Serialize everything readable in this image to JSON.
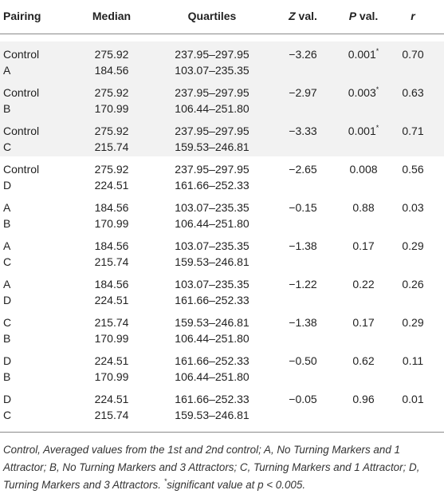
{
  "table": {
    "header": [
      "Pairing",
      "Median",
      "Quartiles",
      "Z val.",
      "P val.",
      "r"
    ],
    "rows": [
      {
        "pairing": [
          "Control",
          "A"
        ],
        "median": [
          "275.92",
          "184.56"
        ],
        "quartiles": [
          "237.95–297.95",
          "103.07–235.35"
        ],
        "z": "−3.26",
        "p": "0.001",
        "mark": "*",
        "r": "0.70"
      },
      {
        "pairing": [
          "Control",
          "B"
        ],
        "median": [
          "275.92",
          "170.99"
        ],
        "quartiles": [
          "237.95–297.95",
          "106.44–251.80"
        ],
        "z": "−2.97",
        "p": "0.003",
        "mark": "*",
        "r": "0.63"
      },
      {
        "pairing": [
          "Control",
          "C"
        ],
        "median": [
          "275.92",
          "215.74"
        ],
        "quartiles": [
          "237.95–297.95",
          "159.53–246.81"
        ],
        "z": "−3.33",
        "p": "0.001",
        "mark": "*",
        "r": "0.71"
      },
      {
        "pairing": [
          "Control",
          "D"
        ],
        "median": [
          "275.92",
          "224.51"
        ],
        "quartiles": [
          "237.95–297.95",
          "161.66–252.33"
        ],
        "z": "−2.65",
        "p": "0.008",
        "r": "0.56"
      },
      {
        "pairing": [
          "A",
          "B"
        ],
        "median": [
          "184.56",
          "170.99"
        ],
        "quartiles": [
          "103.07–235.35",
          "106.44–251.80"
        ],
        "z": "−0.15",
        "p": "0.88",
        "r": "0.03"
      },
      {
        "pairing": [
          "A",
          "C"
        ],
        "median": [
          "184.56",
          "215.74"
        ],
        "quartiles": [
          "103.07–235.35",
          "159.53–246.81"
        ],
        "z": "−1.38",
        "p": "0.17",
        "r": "0.29"
      },
      {
        "pairing": [
          "A",
          "D"
        ],
        "median": [
          "184.56",
          "224.51"
        ],
        "quartiles": [
          "103.07–235.35",
          "161.66–252.33"
        ],
        "z": "−1.22",
        "p": "0.22",
        "r": "0.26"
      },
      {
        "pairing": [
          "C",
          "B"
        ],
        "median": [
          "215.74",
          "170.99"
        ],
        "quartiles": [
          "159.53–246.81",
          "106.44–251.80"
        ],
        "z": "−1.38",
        "p": "0.17",
        "r": "0.29"
      },
      {
        "pairing": [
          "D",
          "B"
        ],
        "median": [
          "224.51",
          "170.99"
        ],
        "quartiles": [
          "161.66–252.33",
          "106.44–251.80"
        ],
        "z": "−0.50",
        "p": "0.62",
        "r": "0.11"
      },
      {
        "pairing": [
          "D",
          "C"
        ],
        "median": [
          "224.51",
          "215.74"
        ],
        "quartiles": [
          "161.66–252.33",
          "159.53–246.81"
        ],
        "z": "−0.05",
        "p": "0.96",
        "r": "0.01"
      }
    ],
    "footnote": {
      "text": "Control, Averaged values from the 1st and 2nd control; A, No Turning Markers and 1 Attractor; B, No Turning Markers and 3 Attractors; C, Turning Markers and 1 Attractor; D, Turning Markers and 3 Attractors.",
      "mark": "*",
      "significance": "significant value at p < 0.005."
    }
  }
}
